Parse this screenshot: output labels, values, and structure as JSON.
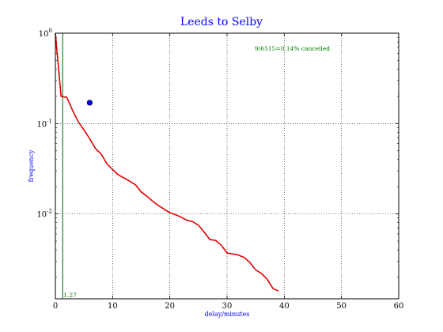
{
  "chart_data": {
    "type": "line",
    "title": "Leeds to Selby",
    "xlabel": "delay/minutes",
    "ylabel": "frequency",
    "x_scale": "linear",
    "y_scale": "log",
    "xlim": [
      0,
      60
    ],
    "ylim": [
      0.00115,
      1.0
    ],
    "grid": true,
    "x_ticks": [
      0,
      10,
      20,
      30,
      40,
      50,
      60
    ],
    "x_tick_labels": [
      "0",
      "10",
      "20",
      "30",
      "40",
      "50",
      "60"
    ],
    "y_ticks": [
      {
        "value": 1.0,
        "mantissa": "10",
        "exponent": "0"
      },
      {
        "value": 0.1,
        "mantissa": "10",
        "exponent": "-1"
      },
      {
        "value": 0.01,
        "mantissa": "10",
        "exponent": "-2"
      }
    ],
    "cancel_annotation": "9/6515=0.14% cancelled",
    "mean_line": {
      "x": 1.27,
      "label": "1.27"
    },
    "marker_point": {
      "x": 6,
      "y": 0.17
    },
    "series": [
      {
        "color": "#e00000",
        "x": [
          0,
          1,
          2,
          3,
          4,
          5,
          6,
          7,
          8,
          9,
          10,
          11,
          12,
          13,
          14,
          15,
          16,
          17,
          18,
          19,
          20,
          21,
          22,
          23,
          24,
          25,
          26,
          27,
          28,
          29,
          30,
          31,
          32,
          33,
          34,
          35,
          36,
          37,
          38,
          39
        ],
        "y": [
          1.0,
          0.2,
          0.195,
          0.14,
          0.105,
          0.085,
          0.068,
          0.053,
          0.046,
          0.036,
          0.031,
          0.027,
          0.025,
          0.023,
          0.021,
          0.0175,
          0.0157,
          0.0138,
          0.0124,
          0.0113,
          0.0103,
          0.0098,
          0.0092,
          0.0085,
          0.0082,
          0.0075,
          0.0063,
          0.0052,
          0.0051,
          0.0045,
          0.0037,
          0.0036,
          0.0035,
          0.0033,
          0.0029,
          0.0024,
          0.0022,
          0.0019,
          0.0015,
          0.0014
        ]
      }
    ],
    "colors": {
      "title": "#0000ff",
      "axis_labels": "#0000ff",
      "series": "#e00000",
      "mean_line": "#006400",
      "annotation": "#007a00",
      "marker_fill": "#0000ff",
      "grid": "#000000"
    }
  }
}
